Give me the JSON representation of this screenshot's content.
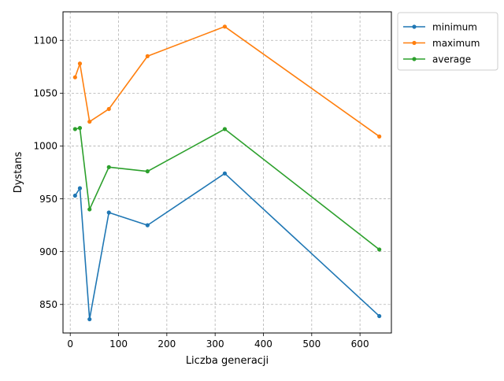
{
  "chart_data": {
    "type": "line",
    "title": "",
    "xlabel": "Liczba generacji",
    "ylabel": "Dystans",
    "xlim": [
      -15,
      665
    ],
    "ylim": [
      823,
      1127
    ],
    "xticks": [
      0,
      100,
      200,
      300,
      400,
      500,
      600
    ],
    "yticks": [
      850,
      900,
      950,
      1000,
      1050,
      1100
    ],
    "grid": true,
    "grid_style": "dashed",
    "legend_position": "outside top-right",
    "x": [
      10,
      20,
      40,
      80,
      160,
      320,
      640
    ],
    "series": [
      {
        "name": "minimum",
        "color": "#1f77b4",
        "marker": "dot",
        "values": [
          953,
          960,
          836,
          937,
          925,
          974,
          839
        ]
      },
      {
        "name": "maximum",
        "color": "#ff7f0e",
        "marker": "dot",
        "values": [
          1065,
          1078,
          1023,
          1035,
          1085,
          1113,
          1009
        ]
      },
      {
        "name": "average",
        "color": "#2ca02c",
        "marker": "dot",
        "values": [
          1016,
          1017,
          940,
          980,
          976,
          1016,
          902
        ]
      }
    ]
  }
}
